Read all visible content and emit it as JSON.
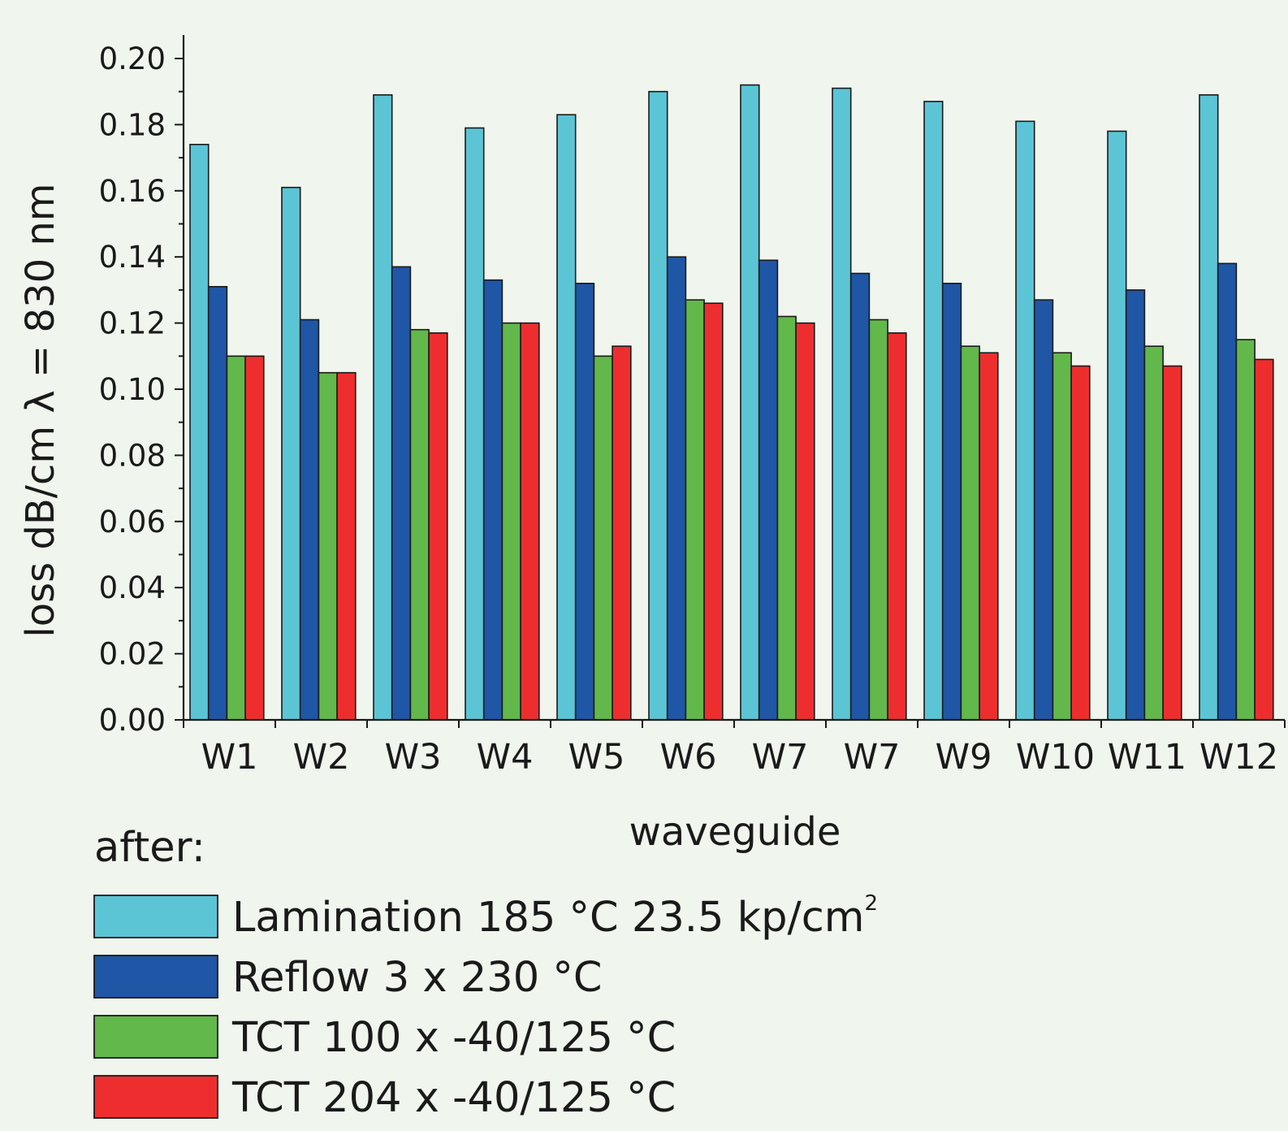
{
  "chart_data": {
    "type": "bar",
    "title": "",
    "xlabel": "waveguide",
    "ylabel": "loss dB/cm λ = 830 nm",
    "ylim": [
      0,
      0.2
    ],
    "yticks": [
      "0.00",
      "0.02",
      "0.04",
      "0.06",
      "0.08",
      "0.10",
      "0.12",
      "0.14",
      "0.16",
      "0.18",
      "0.20"
    ],
    "categories": [
      "W1",
      "W2",
      "W3",
      "W4",
      "W5",
      "W6",
      "W7",
      "W7",
      "W9",
      "W10",
      "W11",
      "W12"
    ],
    "legend_title": "after:",
    "legend_position": "bottom-left",
    "series": [
      {
        "name": "Lamination 185 °C 23.5 kp/cm",
        "name_superscript": "2",
        "color": "#5bc5d6",
        "values": [
          0.174,
          0.161,
          0.189,
          0.179,
          0.183,
          0.19,
          0.192,
          0.191,
          0.187,
          0.181,
          0.178,
          0.189
        ]
      },
      {
        "name": "Reflow 3 x 230 °C",
        "color": "#1f56a5",
        "values": [
          0.131,
          0.121,
          0.137,
          0.133,
          0.132,
          0.14,
          0.139,
          0.135,
          0.132,
          0.127,
          0.13,
          0.138
        ]
      },
      {
        "name": "TCT 100 x -40/125 °C",
        "color": "#62b84a",
        "values": [
          0.11,
          0.105,
          0.118,
          0.12,
          0.11,
          0.127,
          0.122,
          0.121,
          0.113,
          0.111,
          0.113,
          0.115
        ]
      },
      {
        "name": "TCT 204 x -40/125 °C",
        "color": "#ee2e2e",
        "values": [
          0.11,
          0.105,
          0.117,
          0.12,
          0.113,
          0.126,
          0.12,
          0.117,
          0.111,
          0.107,
          0.107,
          0.109
        ]
      }
    ]
  }
}
